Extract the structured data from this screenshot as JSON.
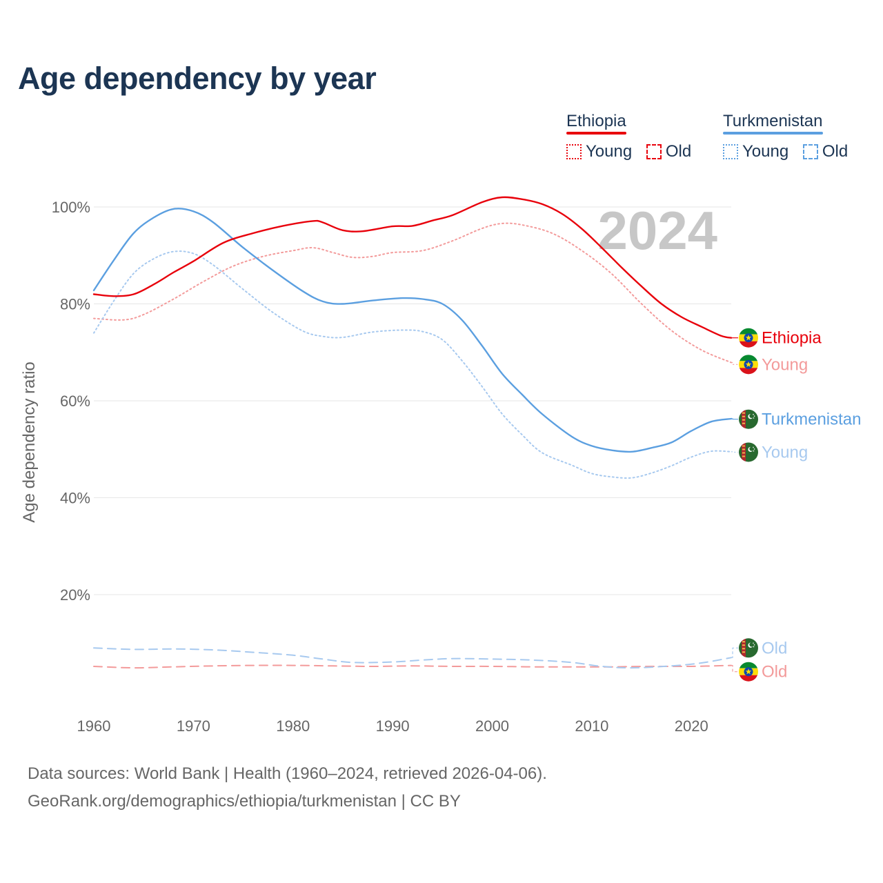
{
  "title": "Age dependency by year",
  "legend": {
    "groups": [
      {
        "name": "Ethiopia",
        "color": "#e8000b",
        "items": [
          {
            "label": "Young",
            "style": "dotted"
          },
          {
            "label": "Old",
            "style": "dashed"
          }
        ]
      },
      {
        "name": "Turkmenistan",
        "color": "#5b9fe0",
        "items": [
          {
            "label": "Young",
            "style": "dotted"
          },
          {
            "label": "Old",
            "style": "dashed"
          }
        ]
      }
    ]
  },
  "year_label": "2024",
  "footer": {
    "sources": "Data sources: World Bank | Health (1960–2024, retrieved 2026-04-06).",
    "link": "GeoRank.org/demographics/ethiopia/turkmenistan | CC BY"
  },
  "chart_data": {
    "type": "line",
    "title": "Age dependency by year",
    "xlabel": "",
    "ylabel": "Age dependency ratio",
    "xlim": [
      1960,
      2024
    ],
    "ylim": [
      -0.5,
      102
    ],
    "xticks": [
      1960,
      1970,
      1980,
      1990,
      2000,
      2010,
      2020
    ],
    "yticks": [
      20,
      40,
      60,
      80,
      100
    ],
    "ytick_labels": [
      "20%",
      "40%",
      "60%",
      "80%",
      "100%"
    ],
    "grid": true,
    "series": [
      {
        "name": "Ethiopia",
        "label": "Ethiopia",
        "country": "Ethiopia",
        "kind": "total",
        "color": "#e8000b",
        "dash": "",
        "label_color": "#e8000b",
        "points": [
          [
            1960,
            82.0
          ],
          [
            1962,
            81.6
          ],
          [
            1964,
            82.0
          ],
          [
            1966,
            84.0
          ],
          [
            1968,
            86.5
          ],
          [
            1970,
            88.8
          ],
          [
            1973,
            92.6
          ],
          [
            1976,
            94.6
          ],
          [
            1979,
            96.1
          ],
          [
            1982,
            97.1
          ],
          [
            1983,
            96.8
          ],
          [
            1985,
            95.2
          ],
          [
            1987,
            95.0
          ],
          [
            1990,
            96.0
          ],
          [
            1992,
            96.1
          ],
          [
            1994,
            97.2
          ],
          [
            1996,
            98.3
          ],
          [
            1999,
            101.0
          ],
          [
            2001,
            102.0
          ],
          [
            2003,
            101.6
          ],
          [
            2005,
            100.6
          ],
          [
            2007,
            98.6
          ],
          [
            2009,
            95.5
          ],
          [
            2011,
            91.6
          ],
          [
            2013,
            87.5
          ],
          [
            2015,
            83.6
          ],
          [
            2017,
            80.0
          ],
          [
            2019,
            77.3
          ],
          [
            2021,
            75.3
          ],
          [
            2023,
            73.4
          ],
          [
            2024,
            73.0
          ]
        ]
      },
      {
        "name": "Ethiopia Young",
        "label": "Young",
        "country": "Ethiopia",
        "kind": "young",
        "color": "#f39a9a",
        "dash": "2,4",
        "label_color": "#f39a9a",
        "points": [
          [
            1960,
            77.0
          ],
          [
            1963,
            76.7
          ],
          [
            1965,
            77.8
          ],
          [
            1968,
            81.0
          ],
          [
            1971,
            84.6
          ],
          [
            1974,
            87.8
          ],
          [
            1977,
            89.8
          ],
          [
            1980,
            91.0
          ],
          [
            1982,
            91.6
          ],
          [
            1984,
            90.6
          ],
          [
            1986,
            89.6
          ],
          [
            1988,
            89.8
          ],
          [
            1990,
            90.6
          ],
          [
            1993,
            91.0
          ],
          [
            1996,
            93.0
          ],
          [
            1999,
            95.6
          ],
          [
            2001,
            96.6
          ],
          [
            2003,
            96.3
          ],
          [
            2006,
            94.6
          ],
          [
            2009,
            91.0
          ],
          [
            2012,
            86.2
          ],
          [
            2015,
            80.0
          ],
          [
            2018,
            74.5
          ],
          [
            2021,
            70.5
          ],
          [
            2024,
            67.9
          ]
        ]
      },
      {
        "name": "Turkmenistan",
        "label": "Turkmenistan",
        "country": "Turkmenistan",
        "kind": "total",
        "color": "#5b9fe0",
        "dash": "",
        "label_color": "#5b9fe0",
        "points": [
          [
            1960,
            82.8
          ],
          [
            1962,
            89.0
          ],
          [
            1964,
            94.6
          ],
          [
            1966,
            97.8
          ],
          [
            1968,
            99.6
          ],
          [
            1970,
            99.1
          ],
          [
            1972,
            96.8
          ],
          [
            1975,
            91.6
          ],
          [
            1978,
            86.9
          ],
          [
            1981,
            82.6
          ],
          [
            1983,
            80.5
          ],
          [
            1985,
            80.0
          ],
          [
            1988,
            80.7
          ],
          [
            1991,
            81.2
          ],
          [
            1993,
            81.0
          ],
          [
            1995,
            80.0
          ],
          [
            1997,
            76.6
          ],
          [
            1999,
            71.3
          ],
          [
            2001,
            65.6
          ],
          [
            2003,
            61.3
          ],
          [
            2005,
            57.3
          ],
          [
            2008,
            52.6
          ],
          [
            2010,
            50.7
          ],
          [
            2012,
            49.8
          ],
          [
            2014,
            49.5
          ],
          [
            2016,
            50.3
          ],
          [
            2018,
            51.4
          ],
          [
            2020,
            53.8
          ],
          [
            2022,
            55.7
          ],
          [
            2024,
            56.3
          ]
        ]
      },
      {
        "name": "Turkmenistan Young",
        "label": "Young",
        "country": "Turkmenistan",
        "kind": "young",
        "color": "#a7c9ef",
        "dash": "2,4",
        "label_color": "#a7c9ef",
        "points": [
          [
            1960,
            74.0
          ],
          [
            1962,
            80.6
          ],
          [
            1964,
            86.3
          ],
          [
            1966,
            89.3
          ],
          [
            1968,
            90.8
          ],
          [
            1970,
            90.4
          ],
          [
            1972,
            88.0
          ],
          [
            1975,
            83.0
          ],
          [
            1978,
            78.2
          ],
          [
            1981,
            74.4
          ],
          [
            1983,
            73.3
          ],
          [
            1985,
            73.1
          ],
          [
            1988,
            74.2
          ],
          [
            1991,
            74.6
          ],
          [
            1993,
            74.3
          ],
          [
            1995,
            72.6
          ],
          [
            1997,
            68.2
          ],
          [
            1999,
            62.9
          ],
          [
            2001,
            57.3
          ],
          [
            2003,
            53.0
          ],
          [
            2005,
            49.3
          ],
          [
            2008,
            46.7
          ],
          [
            2010,
            45.0
          ],
          [
            2012,
            44.3
          ],
          [
            2014,
            44.1
          ],
          [
            2016,
            45.1
          ],
          [
            2018,
            46.6
          ],
          [
            2020,
            48.4
          ],
          [
            2022,
            49.6
          ],
          [
            2024,
            49.5
          ]
        ]
      },
      {
        "name": "Turkmenistan Old",
        "label": "Old",
        "country": "Turkmenistan",
        "kind": "old",
        "color": "#a7c9ef",
        "dash": "12,8",
        "label_color": "#a7c9ef",
        "points": [
          [
            1960,
            9.0
          ],
          [
            1964,
            8.7
          ],
          [
            1968,
            8.8
          ],
          [
            1972,
            8.6
          ],
          [
            1976,
            8.1
          ],
          [
            1980,
            7.5
          ],
          [
            1983,
            6.7
          ],
          [
            1986,
            6.0
          ],
          [
            1990,
            6.1
          ],
          [
            1993,
            6.5
          ],
          [
            1996,
            6.8
          ],
          [
            2000,
            6.7
          ],
          [
            2004,
            6.5
          ],
          [
            2008,
            6.0
          ],
          [
            2011,
            5.2
          ],
          [
            2014,
            4.9
          ],
          [
            2018,
            5.3
          ],
          [
            2021,
            5.9
          ],
          [
            2024,
            7.0
          ]
        ]
      },
      {
        "name": "Ethiopia Old",
        "label": "Old",
        "country": "Ethiopia",
        "kind": "old",
        "color": "#f39a9a",
        "dash": "12,8",
        "label_color": "#f39a9a",
        "points": [
          [
            1960,
            5.2
          ],
          [
            1964,
            4.9
          ],
          [
            1968,
            5.1
          ],
          [
            1972,
            5.3
          ],
          [
            1976,
            5.4
          ],
          [
            1980,
            5.4
          ],
          [
            1984,
            5.3
          ],
          [
            1988,
            5.2
          ],
          [
            1992,
            5.3
          ],
          [
            1996,
            5.2
          ],
          [
            2000,
            5.2
          ],
          [
            2004,
            5.1
          ],
          [
            2008,
            5.1
          ],
          [
            2012,
            5.1
          ],
          [
            2016,
            5.2
          ],
          [
            2020,
            5.2
          ],
          [
            2024,
            5.4
          ]
        ]
      }
    ],
    "end_labels": [
      {
        "text": "Ethiopia",
        "series": 0,
        "label_y": 73.0
      },
      {
        "text": "Young",
        "series": 1,
        "label_y": 67.5
      },
      {
        "text": "Turkmenistan",
        "series": 2,
        "label_y": 56.2
      },
      {
        "text": "Young",
        "series": 3,
        "label_y": 49.4
      },
      {
        "text": "Old",
        "series": 4,
        "label_y": 9.0
      },
      {
        "text": "Old",
        "series": 5,
        "label_y": 4.1
      }
    ]
  }
}
